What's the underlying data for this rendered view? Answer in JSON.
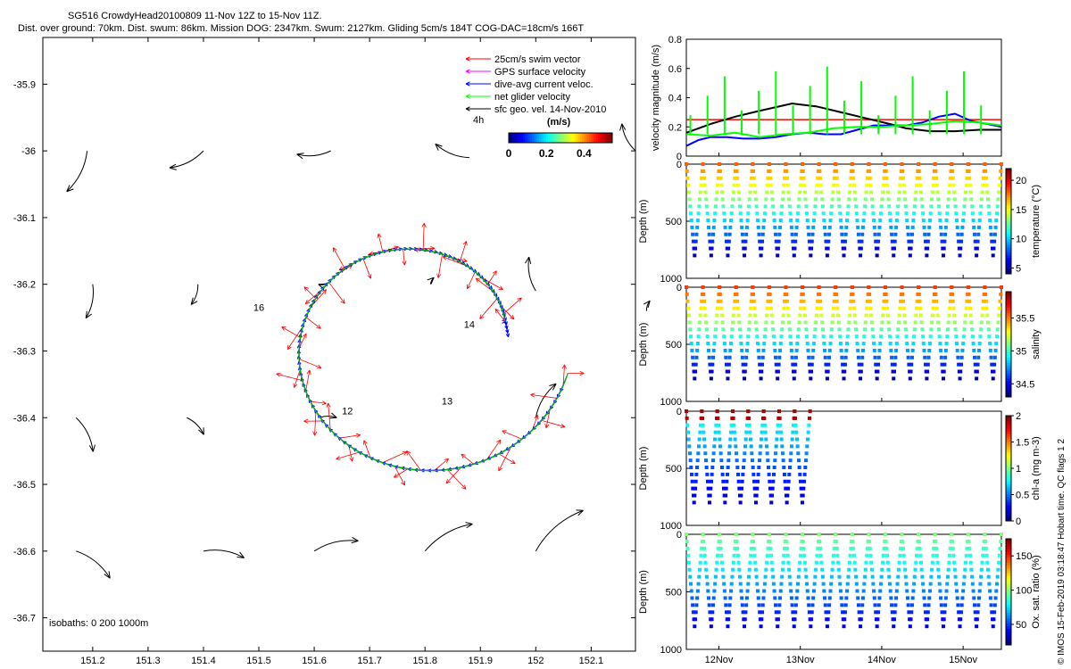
{
  "header": {
    "line1": "SG516 CrowdyHead20100809 11-Nov 12Z to 15-Nov 11Z.",
    "line2": "Dist. over ground: 70km. Dist. swum: 86km. Mission DOG: 2347km. Swum: 2127km. Gliding 5cm/s 184T COG-DAC=18cm/s 166T"
  },
  "side_note": "© IMOS 15-Feb-2019 03:18:47 Hobart time. QC flags 1  2",
  "chart_data": [
    {
      "type": "scatter",
      "kind": "map",
      "title": "SG516 CrowdyHead20100809 11-Nov 12Z to 15-Nov 11Z.",
      "x_ticks": [
        "151.2",
        "151.3",
        "151.4",
        "151.5",
        "151.6",
        "151.7",
        "151.8",
        "151.9",
        "152",
        "152.1"
      ],
      "y_ticks": [
        "-35.9",
        "-36",
        "-36.1",
        "-36.2",
        "-36.3",
        "-36.4",
        "-36.5",
        "-36.6",
        "-36.7"
      ],
      "xlim": [
        151.11,
        152.18
      ],
      "ylim": [
        -36.75,
        -35.83
      ],
      "legend": [
        {
          "label": "25cm/s swim vector",
          "color": "#ff0000"
        },
        {
          "label": "GPS surface velocity",
          "color": "#ff00ff"
        },
        {
          "label": "dive-avg current veloc.",
          "color": "#0000ff"
        },
        {
          "label": "net glider velocity",
          "color": "#00ff00"
        },
        {
          "label": "sfc geo. vel. 14-Nov-2010",
          "color": "#000000"
        }
      ],
      "legend_extra": "4h",
      "colorbar": {
        "label": "(m/s)",
        "ticks": [
          "0",
          "0.2",
          "0.4"
        ],
        "range": [
          0,
          0.55
        ]
      },
      "track_labels": [
        "16",
        "14",
        "12",
        "13"
      ],
      "isobaths_label": "isobaths: 0   200   1000m",
      "geo_vectors": [
        {
          "lon": 151.19,
          "lat": -36.0,
          "u": -0.06,
          "v": -0.12
        },
        {
          "lon": 151.4,
          "lat": -36.0,
          "u": -0.1,
          "v": -0.05
        },
        {
          "lon": 151.63,
          "lat": -36.0,
          "u": -0.1,
          "v": -0.01
        },
        {
          "lon": 151.88,
          "lat": -36.01,
          "u": -0.1,
          "v": 0.04
        },
        {
          "lon": 152.18,
          "lat": -36.0,
          "u": -0.04,
          "v": 0.08
        },
        {
          "lon": 151.2,
          "lat": -36.2,
          "u": -0.02,
          "v": -0.1
        },
        {
          "lon": 151.39,
          "lat": -36.2,
          "u": -0.02,
          "v": -0.06
        },
        {
          "lon": 151.62,
          "lat": -36.2,
          "u": -0.02,
          "v": 0.0
        },
        {
          "lon": 151.81,
          "lat": -36.2,
          "u": 0.01,
          "v": 0.02
        },
        {
          "lon": 152.0,
          "lat": -36.21,
          "u": -0.02,
          "v": 0.1
        },
        {
          "lon": 152.2,
          "lat": -36.24,
          "u": 0.01,
          "v": 0.03
        },
        {
          "lon": 151.17,
          "lat": -36.4,
          "u": 0.05,
          "v": -0.1
        },
        {
          "lon": 151.37,
          "lat": -36.4,
          "u": 0.05,
          "v": -0.05
        },
        {
          "lon": 151.61,
          "lat": -36.4,
          "u": 0.05,
          "v": 0.0
        },
        {
          "lon": 152.0,
          "lat": -36.4,
          "u": 0.06,
          "v": 0.1
        },
        {
          "lon": 151.17,
          "lat": -36.6,
          "u": 0.1,
          "v": -0.08
        },
        {
          "lon": 151.4,
          "lat": -36.6,
          "u": 0.12,
          "v": -0.02
        },
        {
          "lon": 151.6,
          "lat": -36.6,
          "u": 0.13,
          "v": 0.03
        },
        {
          "lon": 151.8,
          "lat": -36.6,
          "u": 0.14,
          "v": 0.08
        },
        {
          "lon": 152.0,
          "lat": -36.6,
          "u": 0.14,
          "v": 0.12
        }
      ]
    },
    {
      "type": "line",
      "ylabel": "velocity magnitude (m/s)",
      "ylim": [
        0,
        0.8
      ],
      "y_ticks": [
        "0",
        "0.2",
        "0.4",
        "0.6",
        "0.8"
      ],
      "xlim": [
        11.6,
        15.47
      ],
      "reference_line": {
        "value": 0.25,
        "color": "#ff0000"
      },
      "series": [
        {
          "color": "#000000",
          "x": [
            11.6,
            11.9,
            12.2,
            12.5,
            12.9,
            13.2,
            13.5,
            13.8,
            14.1,
            14.3,
            14.6,
            14.9,
            15.2,
            15.47
          ],
          "y": [
            0.16,
            0.22,
            0.27,
            0.31,
            0.36,
            0.34,
            0.3,
            0.26,
            0.22,
            0.19,
            0.17,
            0.17,
            0.18,
            0.18
          ]
        },
        {
          "color": "#0000ff",
          "x": [
            11.6,
            11.75,
            11.9,
            12.1,
            12.3,
            12.5,
            12.7,
            12.9,
            13.1,
            13.3,
            13.5,
            13.7,
            13.9,
            14.1,
            14.3,
            14.5,
            14.7,
            14.9,
            15.1,
            15.3,
            15.47
          ],
          "y": [
            0.07,
            0.11,
            0.13,
            0.13,
            0.12,
            0.12,
            0.13,
            0.15,
            0.16,
            0.15,
            0.15,
            0.18,
            0.21,
            0.21,
            0.21,
            0.23,
            0.27,
            0.29,
            0.24,
            0.22,
            0.2
          ]
        },
        {
          "color": "#00ff00",
          "x": [
            11.6,
            11.9,
            12.2,
            12.5,
            12.8,
            13.1,
            13.4,
            13.7,
            14.0,
            14.3,
            14.6,
            14.9,
            15.2,
            15.47
          ],
          "y": [
            0.15,
            0.14,
            0.16,
            0.13,
            0.15,
            0.16,
            0.19,
            0.2,
            0.2,
            0.21,
            0.22,
            0.24,
            0.23,
            0.21
          ]
        }
      ]
    },
    {
      "type": "scatter",
      "ylabel": "Depth (m)",
      "colorbar_label": "temperature (°C)",
      "ylim": [
        1000,
        0
      ],
      "y_ticks": [
        "0",
        "500",
        "1000"
      ],
      "colorbar_ticks": [
        "5",
        "10",
        "15",
        "20"
      ],
      "crange": [
        4,
        22
      ],
      "cycles": 19,
      "max_depth": 800,
      "x_end": 15.47
    },
    {
      "type": "scatter",
      "ylabel": "Depth (m)",
      "colorbar_label": "salinity",
      "ylim": [
        1000,
        0
      ],
      "y_ticks": [
        "0",
        "500",
        "1000"
      ],
      "colorbar_ticks": [
        "34.5",
        "35",
        "35.5"
      ],
      "crange": [
        34.3,
        35.9
      ],
      "cycles": 19,
      "max_depth": 800,
      "x_end": 15.47
    },
    {
      "type": "scatter",
      "ylabel": "Depth (m)",
      "colorbar_label": "chl-a (mg m-3)",
      "ylim": [
        1000,
        0
      ],
      "y_ticks": [
        "0",
        "500",
        "1000"
      ],
      "colorbar_ticks": [
        "0",
        "0.5",
        "1",
        "1.5",
        "2"
      ],
      "crange": [
        0,
        2
      ],
      "cycles": 8,
      "max_depth": 800,
      "x_end": 13.12
    },
    {
      "type": "scatter",
      "ylabel": "Depth (m)",
      "colorbar_label": "Ox. sat. ratio (%)",
      "ylim": [
        1000,
        0
      ],
      "y_ticks": [
        "0",
        "500",
        "1000"
      ],
      "colorbar_ticks": [
        "50",
        "100",
        "150"
      ],
      "crange": [
        20,
        175
      ],
      "cycles": 19,
      "max_depth": 800,
      "x_end": 15.47
    }
  ],
  "time_axis": {
    "ticks": [
      "12Nov",
      "13Nov",
      "14Nov",
      "15Nov"
    ],
    "values": [
      12,
      13,
      14,
      15
    ],
    "range": [
      11.6,
      15.47
    ]
  }
}
